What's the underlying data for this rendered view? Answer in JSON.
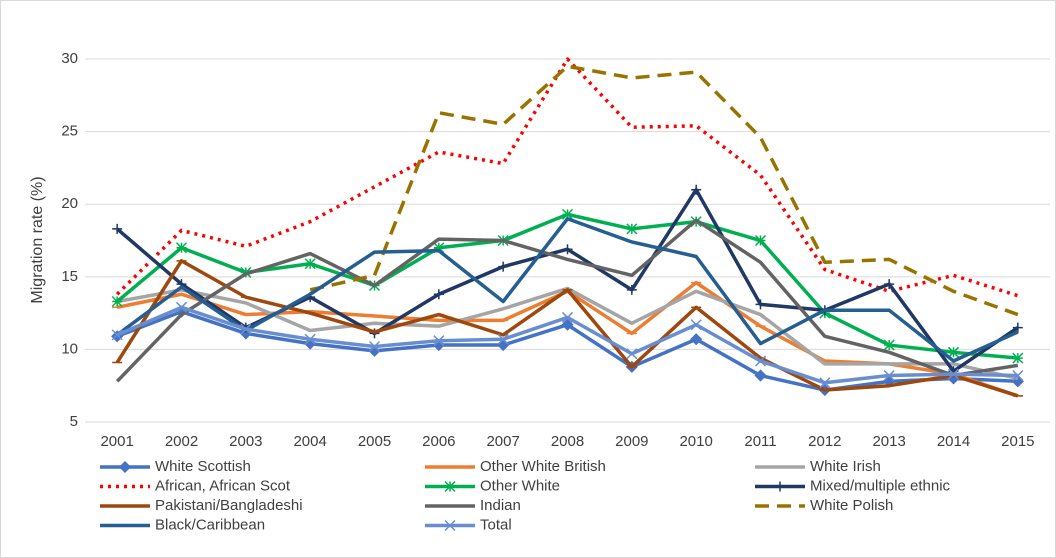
{
  "chart_data": {
    "type": "line",
    "y_label": "Migration rate (%)",
    "x": [
      "2001",
      "2002",
      "2003",
      "2004",
      "2005",
      "2006",
      "2007",
      "2008",
      "2009",
      "2010",
      "2011",
      "2012",
      "2013",
      "2014",
      "2015"
    ],
    "ylim": [
      5,
      32
    ],
    "yticks": [
      5,
      10,
      15,
      20,
      25,
      30
    ],
    "grid": true,
    "legend": "bottom",
    "series": [
      {
        "name": "White Scottish",
        "color": "#4472c4",
        "marker": "diamond",
        "values": [
          10.9,
          12.6,
          11.1,
          10.4,
          9.9,
          10.3,
          10.3,
          11.7,
          8.8,
          10.7,
          8.2,
          7.2,
          7.8,
          8.0,
          7.8
        ]
      },
      {
        "name": "Other White British",
        "color": "#ed7d31",
        "marker": "dash",
        "values": [
          12.9,
          13.8,
          12.4,
          12.6,
          12.3,
          12.0,
          12.0,
          14.0,
          11.1,
          14.6,
          11.6,
          9.2,
          9.0,
          8.3,
          6.8
        ]
      },
      {
        "name": "White Irish",
        "color": "#a5a5a5",
        "marker": "none",
        "values": [
          13.3,
          14.1,
          13.2,
          11.3,
          11.8,
          11.6,
          12.8,
          14.2,
          11.8,
          14.0,
          12.4,
          9.0,
          9.0,
          9.0,
          8.0
        ]
      },
      {
        "name": "African, African Scot",
        "color": "#ff0000",
        "dash": "dot",
        "marker": "none",
        "values": [
          13.8,
          18.2,
          17.1,
          18.8,
          21.2,
          23.6,
          22.8,
          30.0,
          25.3,
          25.4,
          22.0,
          15.5,
          14.0,
          15.1,
          13.7
        ]
      },
      {
        "name": "Other White",
        "color": "#00b050",
        "marker": "star",
        "values": [
          13.3,
          17.0,
          15.3,
          15.9,
          14.4,
          17.0,
          17.5,
          19.3,
          18.3,
          18.8,
          17.5,
          12.5,
          10.3,
          9.8,
          9.4
        ]
      },
      {
        "name": "Mixed/multiple ethnic",
        "color": "#203864",
        "marker": "plus",
        "values": [
          18.3,
          14.5,
          11.5,
          13.6,
          11.1,
          13.8,
          15.7,
          16.9,
          14.1,
          21.0,
          13.1,
          12.7,
          14.5,
          8.5,
          11.5
        ]
      },
      {
        "name": "Pakistani/Bangladeshi",
        "color": "#9e480e",
        "marker": "dash",
        "values": [
          9.1,
          16.1,
          13.6,
          12.5,
          11.2,
          12.4,
          11.0,
          14.1,
          8.8,
          12.9,
          9.4,
          7.2,
          7.5,
          8.2,
          6.8
        ]
      },
      {
        "name": "Indian",
        "color": "#636363",
        "marker": "none",
        "values": [
          7.8,
          12.4,
          15.2,
          16.6,
          14.4,
          17.6,
          17.5,
          16.2,
          15.1,
          18.9,
          16.0,
          10.9,
          9.8,
          8.2,
          8.9
        ]
      },
      {
        "name": "White Polish",
        "color": "#997300",
        "dash": "dash",
        "marker": "none",
        "values": [
          null,
          null,
          null,
          14.1,
          15.1,
          26.3,
          25.5,
          29.5,
          28.7,
          29.1,
          24.6,
          16.0,
          16.2,
          14.0,
          12.4
        ]
      },
      {
        "name": "Black/Caribbean",
        "color": "#255e91",
        "marker": "none",
        "values": [
          11.0,
          14.3,
          11.3,
          13.8,
          16.7,
          16.8,
          13.3,
          19.0,
          17.4,
          16.4,
          10.4,
          12.7,
          12.7,
          9.2,
          11.2
        ]
      },
      {
        "name": "Total",
        "color": "#698ed0",
        "marker": "x",
        "values": [
          11.0,
          12.9,
          11.4,
          10.7,
          10.2,
          10.6,
          10.7,
          12.2,
          9.7,
          11.7,
          9.2,
          7.7,
          8.2,
          8.3,
          8.2
        ]
      }
    ]
  }
}
